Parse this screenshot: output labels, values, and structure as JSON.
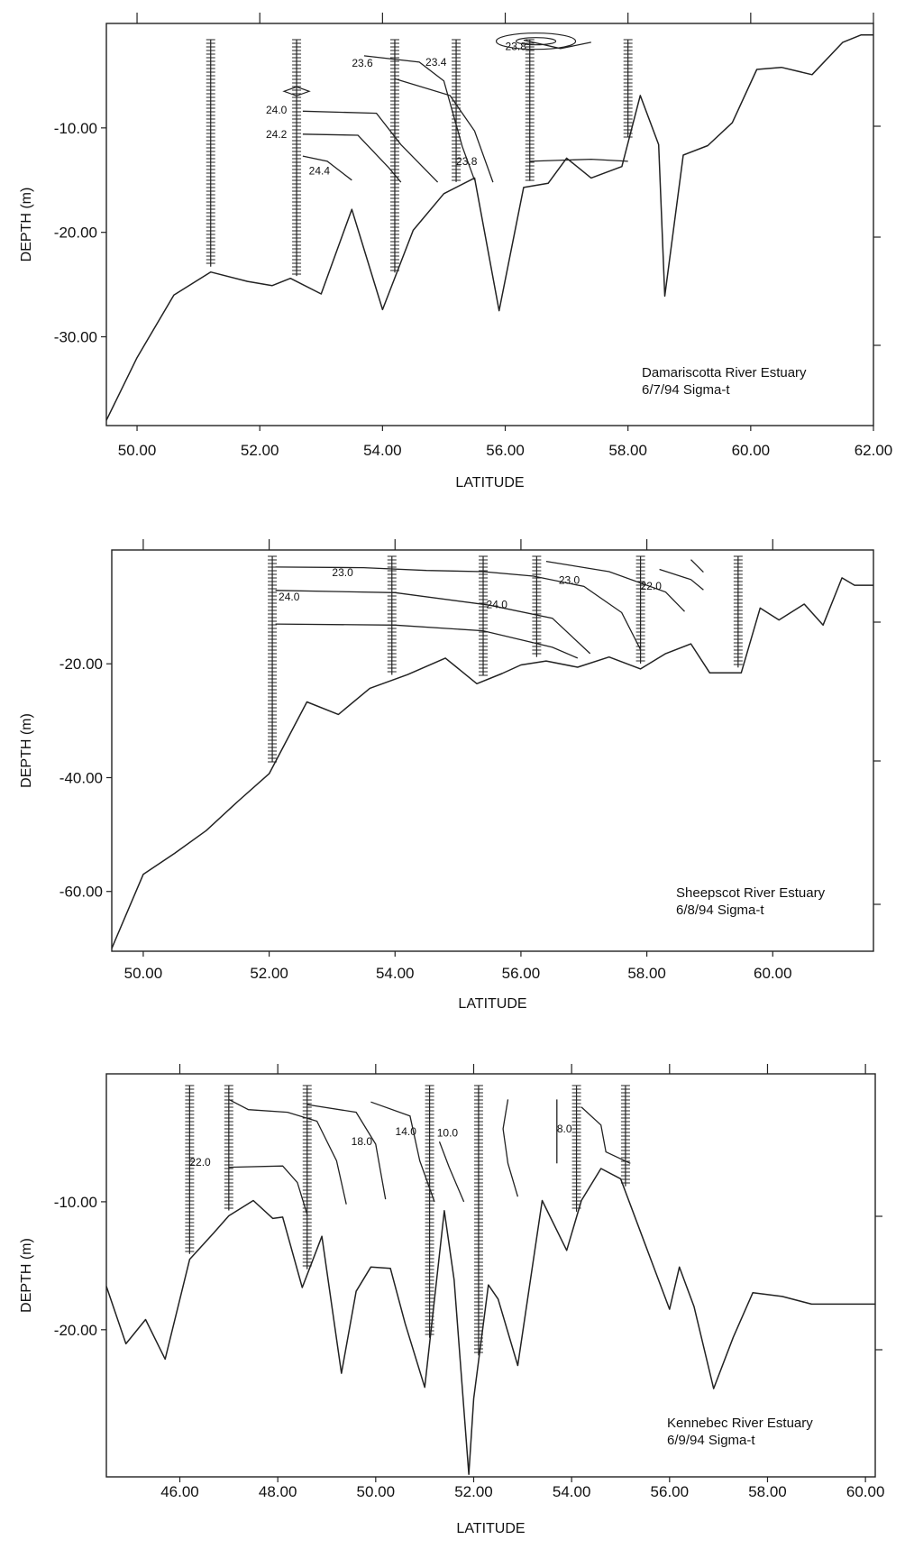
{
  "chart_data": [
    {
      "type": "line",
      "xlabel": "LATITUDE",
      "ylabel": "DEPTH (m)",
      "xlim": [
        49.5,
        62.0
      ],
      "ylim": [
        -38.5,
        0
      ],
      "x_ticks": [
        "50.00",
        "52.00",
        "54.00",
        "56.00",
        "58.00",
        "60.00",
        "62.00"
      ],
      "y_ticks": [
        "-10.00",
        "-20.00",
        "-30.00"
      ],
      "annotation": [
        "Damariscotta River Estuary",
        "6/7/94  Sigma-t"
      ],
      "grid": false,
      "bottom_profile": {
        "x": [
          49.5,
          50.0,
          50.6,
          51.2,
          51.8,
          52.2,
          52.5,
          53.0,
          53.5,
          54.0,
          54.5,
          55.0,
          55.5,
          55.9,
          56.3,
          56.7,
          57.0,
          57.4,
          57.9,
          58.2,
          58.5,
          58.6,
          58.9,
          59.3,
          59.7,
          60.1,
          60.5,
          61.0,
          61.5,
          61.8,
          62.0
        ],
        "y": [
          -38.0,
          -32.0,
          -26.0,
          -23.8,
          -24.7,
          -25.1,
          -24.4,
          -25.9,
          -17.8,
          -27.4,
          -19.8,
          -16.3,
          -14.8,
          -27.5,
          -15.7,
          -15.3,
          -12.9,
          -14.8,
          -13.7,
          -6.9,
          -11.6,
          -26.1,
          -12.6,
          -11.7,
          -9.5,
          -4.4,
          -4.2,
          -4.9,
          -1.8,
          -1.1,
          -1.1
        ]
      },
      "stations": [
        51.2,
        52.6,
        54.2,
        55.2,
        56.4,
        58.0
      ],
      "contour_labels": [
        "23.6",
        "23.4",
        "23.8",
        "24.0",
        "24.2",
        "24.4",
        "23.8"
      ]
    },
    {
      "type": "line",
      "xlabel": "LATITUDE",
      "ylabel": "DEPTH (m)",
      "xlim": [
        49.5,
        61.6
      ],
      "ylim": [
        -70.5,
        0
      ],
      "x_ticks": [
        "50.00",
        "52.00",
        "54.00",
        "56.00",
        "58.00",
        "60.00"
      ],
      "y_ticks": [
        "-20.00",
        "-40.00",
        "-60.00"
      ],
      "annotation": [
        "Sheepscot River Estuary",
        "6/8/94  Sigma-t"
      ],
      "grid": false,
      "bottom_profile": {
        "x": [
          49.5,
          50.0,
          50.5,
          51.0,
          51.5,
          52.0,
          52.6,
          53.1,
          53.6,
          54.2,
          54.8,
          55.3,
          55.7,
          56.0,
          56.4,
          56.9,
          57.4,
          57.9,
          58.3,
          58.7,
          59.0,
          59.5,
          59.8,
          60.1,
          60.5,
          60.8,
          61.1,
          61.3,
          61.6
        ],
        "y": [
          -70.0,
          -57.0,
          -53.3,
          -49.3,
          -44.2,
          -39.3,
          -26.7,
          -28.9,
          -24.3,
          -21.9,
          -19.0,
          -23.5,
          -21.7,
          -20.2,
          -19.5,
          -20.6,
          -18.8,
          -20.9,
          -18.2,
          -16.5,
          -21.6,
          -21.6,
          -10.2,
          -12.3,
          -9.5,
          -13.2,
          -4.9,
          -6.2,
          -6.2
        ]
      },
      "stations": [
        52.05,
        53.95,
        55.4,
        56.25,
        57.9,
        59.45
      ],
      "contour_labels": [
        "23.0",
        "23.0",
        "22.0",
        "24.0",
        "24.0"
      ]
    },
    {
      "type": "line",
      "xlabel": "LATITUDE",
      "ylabel": "DEPTH (m)",
      "xlim": [
        44.5,
        60.2
      ],
      "ylim": [
        -31.5,
        0
      ],
      "x_ticks": [
        "46.00",
        "48.00",
        "50.00",
        "52.00",
        "54.00",
        "56.00",
        "58.00",
        "60.00"
      ],
      "y_ticks": [
        "-10.00",
        "-20.00"
      ],
      "annotation": [
        "Kennebec River Estuary",
        "6/9/94  Sigma-t"
      ],
      "grid": false,
      "bottom_profile": {
        "x": [
          44.5,
          44.9,
          45.3,
          45.7,
          46.2,
          46.7,
          47.0,
          47.5,
          47.9,
          48.1,
          48.5,
          48.9,
          49.3,
          49.6,
          49.9,
          50.3,
          50.6,
          51.0,
          51.4,
          51.6,
          51.9,
          52.0,
          52.3,
          52.5,
          52.9,
          53.4,
          53.9,
          54.2,
          54.6,
          55.0,
          55.5,
          56.0,
          56.2,
          56.5,
          56.9,
          57.3,
          57.7,
          58.3,
          58.9,
          59.5,
          60.2
        ],
        "y": [
          -16.6,
          -21.1,
          -19.2,
          -22.3,
          -14.5,
          -12.4,
          -11.1,
          -9.9,
          -11.3,
          -11.2,
          -16.7,
          -12.7,
          -23.4,
          -17.0,
          -15.1,
          -15.2,
          -19.5,
          -24.5,
          -10.7,
          -16.1,
          -31.3,
          -25.4,
          -16.5,
          -17.6,
          -22.8,
          -9.9,
          -13.8,
          -9.9,
          -7.4,
          -8.2,
          -13.3,
          -18.4,
          -15.1,
          -18.2,
          -24.6,
          -20.6,
          -17.1,
          -17.4,
          -18.0,
          -18.0,
          -18.0
        ]
      },
      "stations": [
        46.2,
        47.0,
        48.6,
        51.1,
        52.1,
        54.1,
        55.1
      ],
      "contour_labels": [
        "22.0",
        "18.0",
        "14.0",
        "10.0",
        "8.0"
      ]
    }
  ]
}
